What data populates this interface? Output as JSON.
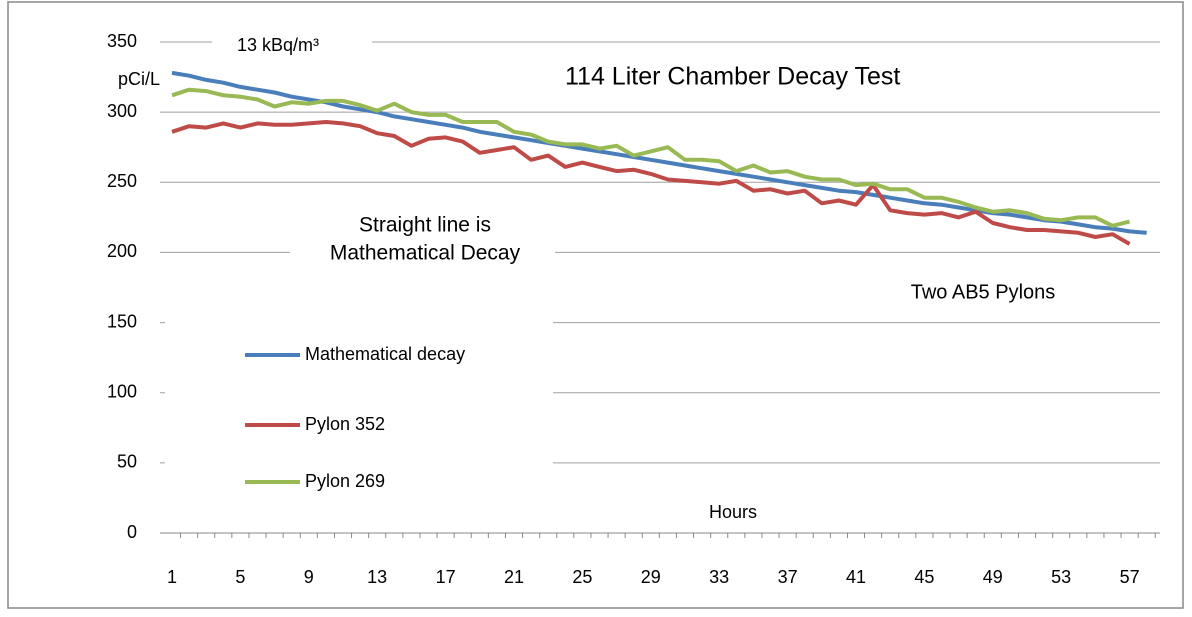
{
  "chart_data": {
    "type": "line",
    "title": "114 Liter Chamber Decay Test",
    "y_label": "pCi/L",
    "x_label": "Hours",
    "annotations": [
      "13 kBq/m³",
      "Straight line is",
      "Mathematical Decay",
      "Two AB5 Pylons"
    ],
    "categories": [
      "1",
      null,
      null,
      null,
      "5",
      null,
      null,
      null,
      "9",
      null,
      null,
      null,
      "13",
      null,
      null,
      null,
      "17",
      null,
      null,
      null,
      "21",
      null,
      null,
      null,
      "25",
      null,
      null,
      null,
      "29",
      null,
      null,
      null,
      "33",
      null,
      null,
      null,
      "37",
      null,
      null,
      null,
      "41",
      null,
      null,
      null,
      "45",
      null,
      null,
      null,
      "49",
      null,
      null,
      null,
      "53",
      null,
      null,
      null,
      "57",
      null
    ],
    "series": [
      {
        "name": "Mathematical decay",
        "color": "#4a7ebb",
        "values": [
          328,
          326,
          323,
          321,
          318,
          316,
          314,
          311,
          309,
          307,
          304,
          302,
          300,
          297,
          295,
          293,
          291,
          289,
          286,
          284,
          282,
          280,
          278,
          276,
          274,
          272,
          270,
          268,
          266,
          264,
          262,
          260,
          258,
          256,
          254,
          252,
          250,
          248,
          246,
          244,
          243,
          241,
          239,
          237,
          235,
          234,
          232,
          230,
          228,
          227,
          225,
          223,
          222,
          220,
          218,
          217,
          215,
          214
        ]
      },
      {
        "name": "Pylon 352",
        "color": "#be4b48",
        "values": [
          286,
          290,
          289,
          292,
          289,
          292,
          291,
          291,
          292,
          293,
          292,
          290,
          285,
          283,
          276,
          281,
          282,
          279,
          271,
          273,
          275,
          266,
          269,
          261,
          264,
          261,
          258,
          259,
          256,
          252,
          251,
          250,
          249,
          251,
          244,
          245,
          242,
          244,
          235,
          237,
          234,
          248,
          230,
          228,
          227,
          228,
          225,
          229,
          221,
          218,
          216,
          216,
          215,
          214,
          211,
          213,
          206,
          null
        ]
      },
      {
        "name": "Pylon 269",
        "color": "#98b954",
        "values": [
          312,
          316,
          315,
          312,
          311,
          309,
          304,
          307,
          306,
          308,
          308,
          305,
          301,
          306,
          300,
          298,
          298,
          293,
          293,
          293,
          286,
          284,
          279,
          277,
          277,
          274,
          276,
          269,
          272,
          275,
          266,
          266,
          265,
          258,
          262,
          257,
          258,
          254,
          252,
          252,
          248,
          249,
          245,
          245,
          239,
          239,
          236,
          232,
          229,
          230,
          228,
          224,
          223,
          225,
          225,
          219,
          222,
          null
        ]
      }
    ],
    "ylim": [
      0,
      350
    ],
    "yticks": [
      0,
      50,
      100,
      150,
      200,
      250,
      300,
      350
    ],
    "grid": true
  }
}
